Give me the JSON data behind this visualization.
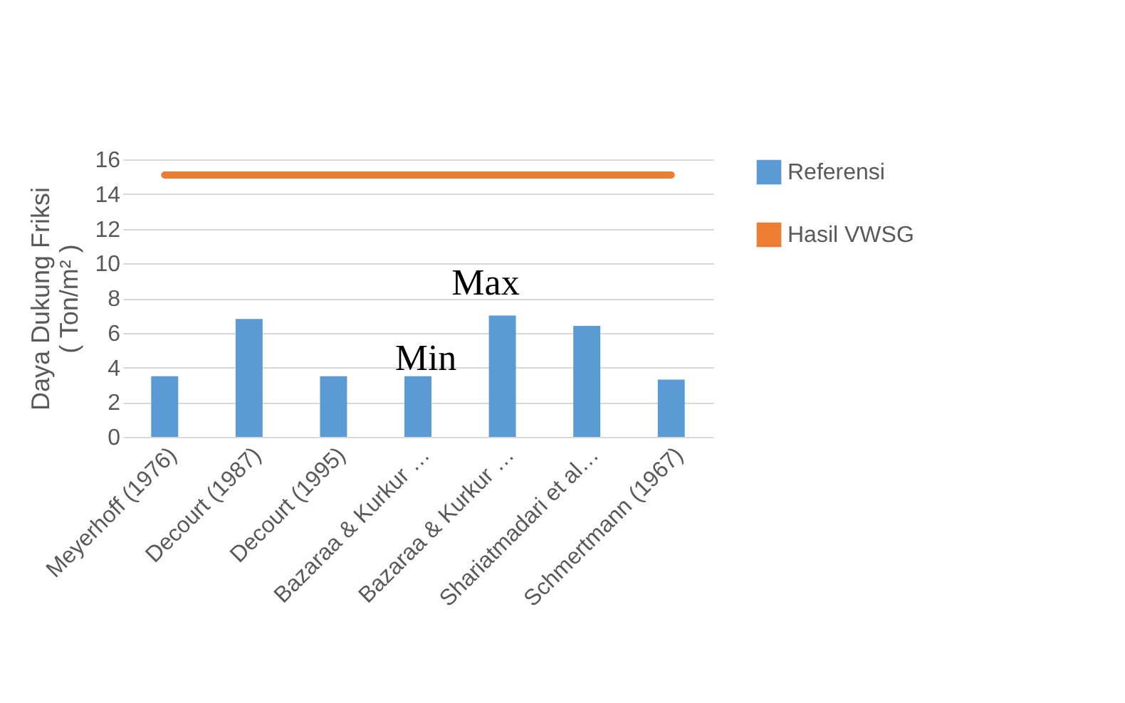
{
  "chart_data": {
    "type": "bar",
    "ylabel": "Daya Dukung Friksi\n( Ton/m² )",
    "categories": [
      "Meyerhoff (1976)",
      "Decourt (1987)",
      "Decourt (1995)",
      "Bazaraa & Kurkur …",
      "Bazaraa & Kurkur …",
      "Shariatmadari et al…",
      "Schmertmann (1967)"
    ],
    "series": [
      {
        "name": "Referensi",
        "color": "#5b9bd5",
        "values": [
          3.5,
          6.8,
          3.5,
          3.5,
          7.0,
          6.4,
          3.3
        ]
      },
      {
        "name": "Hasil VWSG",
        "type": "line",
        "color": "#ed7d31",
        "values": [
          15.1,
          15.1,
          15.1,
          15.1,
          15.1,
          15.1,
          15.1
        ]
      }
    ],
    "ylim": [
      0,
      16
    ],
    "yticks": [
      0,
      2,
      4,
      6,
      8,
      10,
      12,
      14,
      16
    ],
    "grid": "y",
    "legend": "right",
    "annotations": [
      "Min",
      "Max"
    ]
  }
}
